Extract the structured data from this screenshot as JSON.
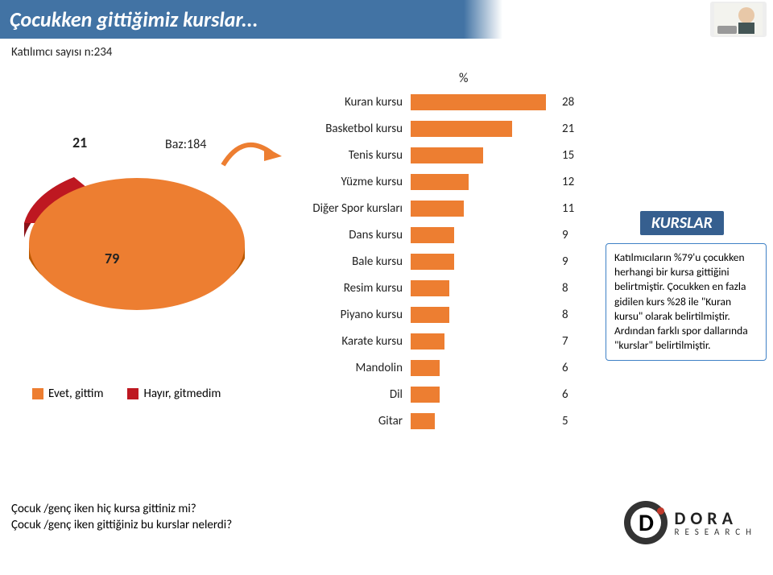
{
  "title": "Çocukken gittiğimiz kurslar...",
  "subnote": "Katılımcı sayısı n:234",
  "baz_label": "Baz:184",
  "pct_symbol": "%",
  "colors": {
    "title_bar_bg": "#4273a4",
    "bar_fill": "#ed7e31",
    "pie_main": "#ed7e31",
    "pie_main_dark": "#bb5900",
    "pie_slice": "#be1821",
    "pie_slice_dark": "#8b1118",
    "callout_border": "#3f81c6",
    "callout_head_bg": "#365f8f",
    "legend_yes": "#ed7e31",
    "legend_no": "#be1821",
    "logo_dot": "#c0392b"
  },
  "pie": {
    "type": "pie",
    "values": [
      79,
      21
    ],
    "labels": [
      "Evet, gittim",
      "Hayır, gitmedim"
    ],
    "colors": [
      "#ed7e31",
      "#be1821"
    ],
    "value_fontsize": 18
  },
  "legend": {
    "items": [
      {
        "label": "Evet, gittim",
        "color": "#ed7e31"
      },
      {
        "label": "Hayır, gitmedim",
        "color": "#be1821"
      }
    ]
  },
  "bars": {
    "type": "bar",
    "orientation": "horizontal",
    "max": 30,
    "bar_color": "#ed7e31",
    "label_fontsize": 15,
    "value_fontsize": 15,
    "items": [
      {
        "label": "Kuran kursu",
        "value": 28
      },
      {
        "label": "Basketbol kursu",
        "value": 21
      },
      {
        "label": "Tenis kursu",
        "value": 15
      },
      {
        "label": "Yüzme kursu",
        "value": 12
      },
      {
        "label": "Diğer Spor kursları",
        "value": 11
      },
      {
        "label": "Dans kursu",
        "value": 9
      },
      {
        "label": "Bale kursu",
        "value": 9
      },
      {
        "label": "Resim kursu",
        "value": 8
      },
      {
        "label": "Piyano kursu",
        "value": 8
      },
      {
        "label": "Karate kursu",
        "value": 7
      },
      {
        "label": "Mandolin",
        "value": 6
      },
      {
        "label": "Dil",
        "value": 6
      },
      {
        "label": "Gitar",
        "value": 5
      }
    ]
  },
  "kurslar_head": "KURSLAR",
  "callout_text": "Katılmıcıların %79'u çocukken herhangi bir kursa gittiğini belirtmiştir. Çocukken en fazla gidilen kurs %28 ile \"Kuran kursu\" olarak belirtilmiştir. Ardından farklı spor dallarında \"kurslar\" belirtilmiştir.",
  "footer_q1": "Çocuk /genç iken hiç kursa gittiniz mi?",
  "footer_q2": "Çocuk /genç iken gittiğiniz bu kurslar nelerdi?",
  "logo": {
    "top": "DORA",
    "bot": "RESEARCH"
  }
}
